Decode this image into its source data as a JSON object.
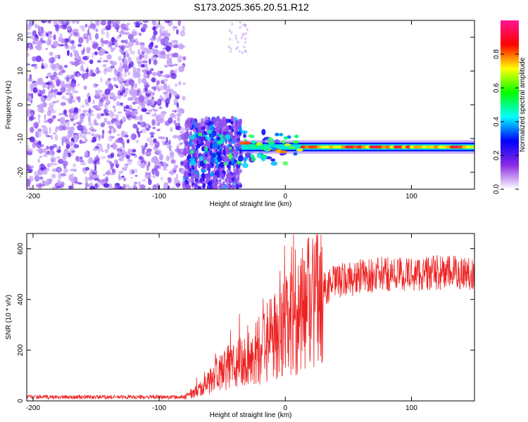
{
  "title": "S173.2025.365.20.51.R12",
  "colors": {
    "scatter": "#7a2ee8",
    "snr_line": "#ee2222",
    "axis": "#000000"
  },
  "chart_data": [
    {
      "type": "heatmap",
      "xlabel": "Height of straight line (km)",
      "ylabel": "Frequency (Hz)",
      "xlim": [
        -205,
        150
      ],
      "ylim": [
        -25,
        25
      ],
      "xticks": [
        -200,
        -100,
        0,
        100
      ],
      "xtick_labels": [
        "-200",
        "-100",
        "0",
        "100"
      ],
      "yticks": [
        -20,
        -10,
        0,
        10,
        20
      ],
      "ytick_labels": [
        "-20",
        "-10",
        "0",
        "10",
        "20"
      ],
      "noise_region_x": [
        -205,
        -80
      ],
      "transition_region_x": [
        -80,
        -35
      ],
      "signal_frequency_hz": -12.5,
      "signal_x_start": -35,
      "colorbar": {
        "label": "Normalized spectral amplitude",
        "range": [
          0,
          1
        ],
        "ticks": [
          0.0,
          0.2,
          0.4,
          0.6,
          0.8
        ],
        "tick_labels": [
          "0.0",
          "0.2",
          "0.4",
          "0.6",
          "0.8"
        ],
        "colormap": [
          "#ffffff",
          "#8a2be2",
          "#0000ff",
          "#00ffff",
          "#00ff00",
          "#ffff00",
          "#ff0000",
          "#ff1493"
        ]
      }
    },
    {
      "type": "line",
      "xlabel": "Height of straight line (km)",
      "ylabel": "SNR (10 * v/v)",
      "xlim": [
        -205,
        150
      ],
      "ylim": [
        0,
        660
      ],
      "xticks": [
        -200,
        -100,
        0,
        100
      ],
      "xtick_labels": [
        "-200",
        "-100",
        "0",
        "100"
      ],
      "yticks": [
        0,
        200,
        400,
        600
      ],
      "ytick_labels": [
        "0",
        "200",
        "400",
        "600"
      ],
      "trend": {
        "x": [
          -205,
          -80,
          -70,
          -60,
          -50,
          -40,
          -30,
          -20,
          -10,
          0,
          10,
          20,
          30,
          40,
          60,
          80,
          100,
          120,
          150
        ],
        "y": [
          15,
          15,
          40,
          90,
          120,
          140,
          160,
          200,
          250,
          290,
          340,
          390,
          440,
          470,
          490,
          500,
          500,
          505,
          505
        ]
      }
    }
  ]
}
